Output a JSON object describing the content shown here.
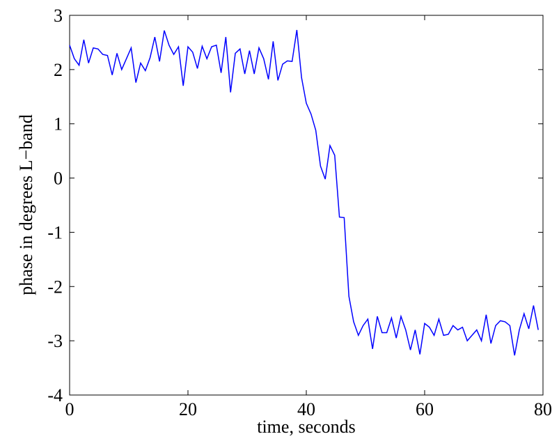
{
  "chart_data": {
    "type": "line",
    "x_label": "time, seconds",
    "y_label": "phase in degrees L−band",
    "x": [
      0,
      0.8,
      1.6,
      2.4,
      3.2,
      4,
      4.8,
      5.6,
      6.4,
      7.2,
      8,
      8.8,
      9.6,
      10.4,
      11.2,
      12,
      12.8,
      13.6,
      14.4,
      15.2,
      16,
      16.8,
      17.6,
      18.4,
      19.2,
      20,
      20.8,
      21.6,
      22.4,
      23.2,
      24,
      24.8,
      25.6,
      26.4,
      27.2,
      28,
      28.8,
      29.6,
      30.4,
      31.2,
      32,
      32.8,
      33.6,
      34.4,
      35.2,
      36,
      36.8,
      37.6,
      38.4,
      39.2,
      40,
      40.8,
      41.6,
      42.4,
      43.2,
      44,
      44.8,
      45.6,
      46.4,
      47.2,
      48,
      48.8,
      49.6,
      50.4,
      51.2,
      52,
      52.8,
      53.6,
      54.4,
      55.2,
      56,
      56.8,
      57.6,
      58.4,
      59.2,
      60,
      60.8,
      61.6,
      62.4,
      63.2,
      64,
      64.8,
      65.6,
      66.4,
      67.2,
      68,
      68.8,
      69.6,
      70.4,
      71.2,
      72,
      72.8,
      73.6,
      74.4,
      75.2,
      76,
      76.8,
      77.6,
      78.4,
      79.2
    ],
    "series": [
      {
        "name": "phase",
        "color": "#0000ff",
        "values": [
          2.45,
          2.2,
          2.08,
          2.55,
          2.12,
          2.4,
          2.38,
          2.28,
          2.26,
          1.9,
          2.3,
          2.0,
          2.2,
          2.4,
          1.76,
          2.12,
          1.98,
          2.22,
          2.6,
          2.15,
          2.72,
          2.45,
          2.28,
          2.42,
          1.7,
          2.42,
          2.32,
          2.02,
          2.43,
          2.2,
          2.42,
          2.45,
          1.94,
          2.6,
          1.58,
          2.3,
          2.38,
          1.92,
          2.35,
          1.92,
          2.4,
          2.2,
          1.82,
          2.52,
          1.8,
          2.1,
          2.16,
          2.15,
          2.73,
          1.85,
          1.38,
          1.18,
          0.88,
          0.22,
          -0.02,
          0.6,
          0.42,
          -0.72,
          -0.73,
          -2.18,
          -2.65,
          -2.9,
          -2.72,
          -2.6,
          -3.15,
          -2.55,
          -2.85,
          -2.85,
          -2.58,
          -2.95,
          -2.55,
          -2.8,
          -3.17,
          -2.8,
          -3.25,
          -2.68,
          -2.75,
          -2.9,
          -2.6,
          -2.9,
          -2.88,
          -2.72,
          -2.8,
          -2.75,
          -3.0,
          -2.9,
          -2.8,
          -3.0,
          -2.52,
          -3.05,
          -2.72,
          -2.63,
          -2.65,
          -2.72,
          -3.27,
          -2.8,
          -2.5,
          -2.78,
          -2.35,
          -2.8
        ]
      }
    ],
    "xlim": [
      0,
      80
    ],
    "xticks": [
      0,
      20,
      40,
      60,
      80
    ],
    "ylim": [
      -4,
      3
    ],
    "yticks": [
      -4,
      -3,
      -2,
      -1,
      0,
      1,
      2,
      3
    ],
    "grid": false
  }
}
